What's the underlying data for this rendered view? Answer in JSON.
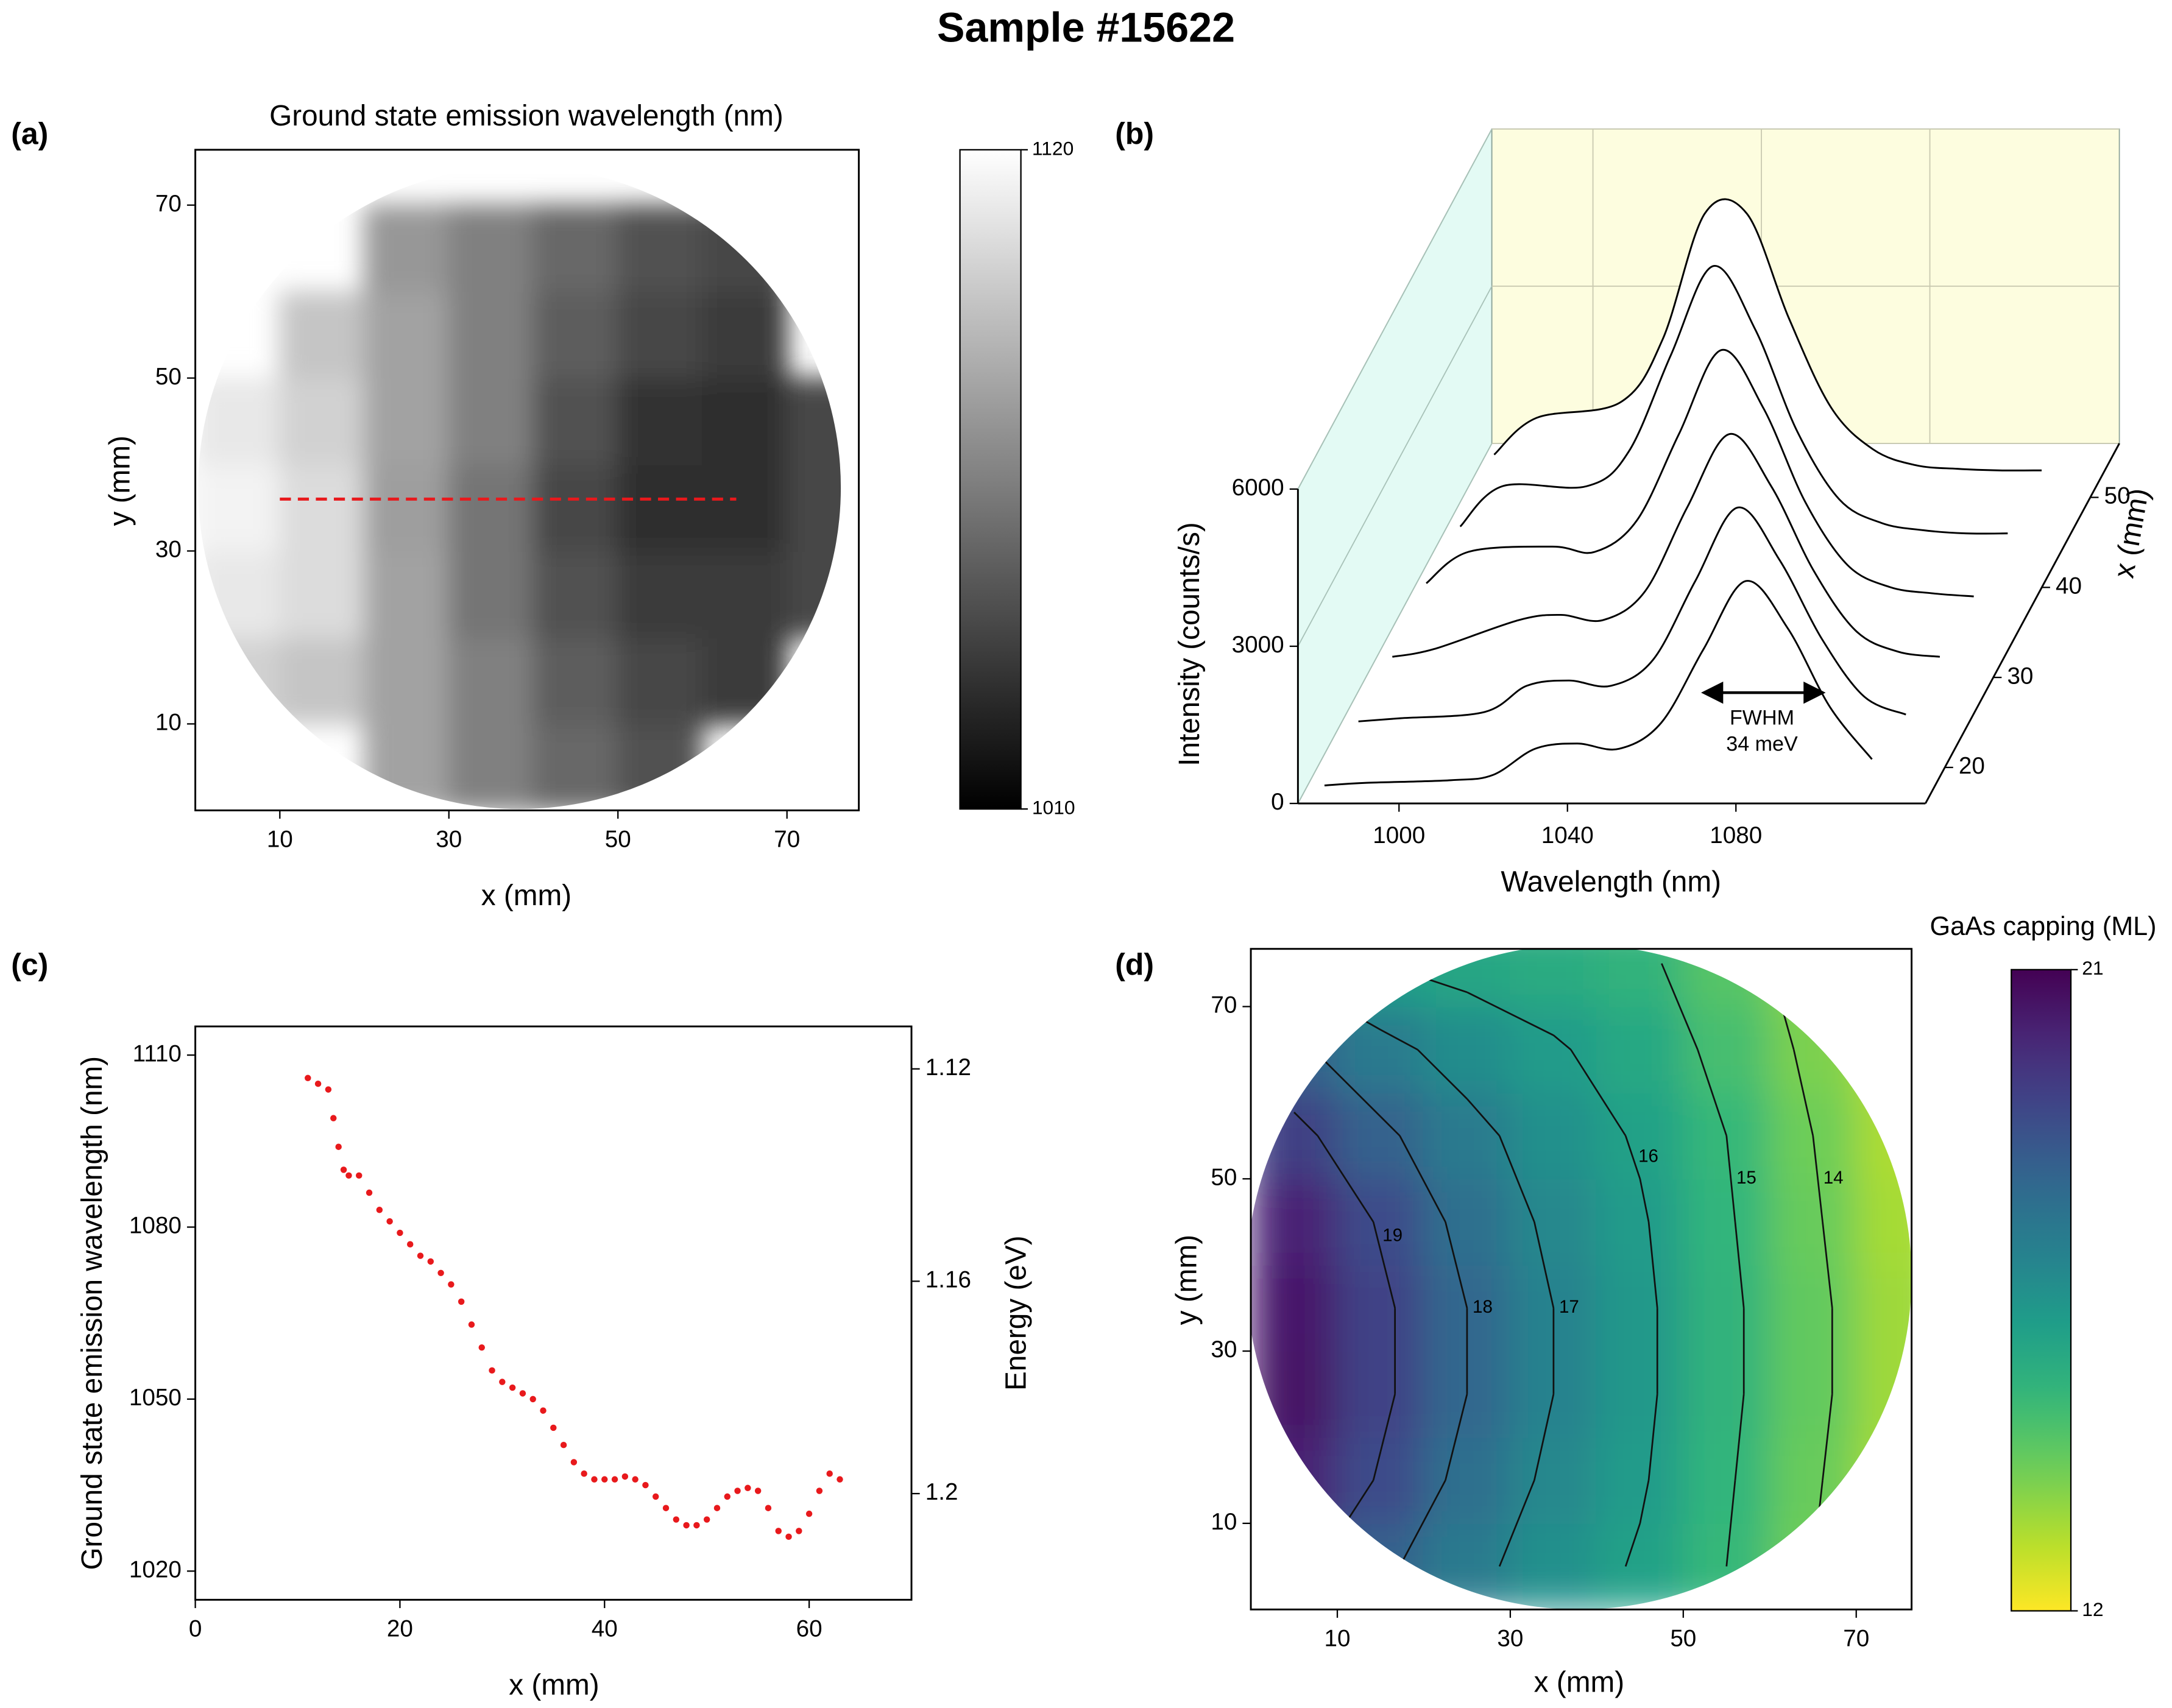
{
  "title": "Sample #15622",
  "chart_data": [
    {
      "type": "contour",
      "panel": "(a)",
      "title": "Ground state emission wavelength (nm)",
      "xlabel": "x (mm)",
      "ylabel": "y (mm)",
      "xlim": [
        0,
        78.5
      ],
      "ylim": [
        0,
        76.4
      ],
      "xticks": [
        10,
        30,
        50,
        70
      ],
      "yticks": [
        10,
        30,
        50,
        70
      ],
      "x": [
        5,
        15,
        25,
        35,
        45,
        55,
        65,
        75
      ],
      "y": [
        5,
        15,
        25,
        35,
        45,
        55,
        65
      ],
      "z": [
        [
          null,
          null,
          1080,
          1065,
          1055,
          1045,
          null,
          null
        ],
        [
          1100,
          1095,
          1080,
          1065,
          1050,
          1040,
          1035,
          null
        ],
        [
          1110,
          1105,
          1080,
          1060,
          1045,
          1035,
          1035,
          1040
        ],
        [
          1115,
          1105,
          1078,
          1060,
          1040,
          1030,
          1030,
          1040
        ],
        [
          1110,
          1100,
          1080,
          1065,
          1045,
          1032,
          1030,
          1040
        ],
        [
          null,
          1095,
          1080,
          1065,
          1050,
          1040,
          1035,
          null
        ],
        [
          null,
          null,
          1075,
          1065,
          1055,
          1045,
          1040,
          null
        ]
      ],
      "colormap": "gray",
      "clim": [
        1010,
        1120
      ],
      "colorbar_ticks": [
        1010,
        1120
      ],
      "line": {
        "x": [
          10,
          64
        ],
        "y": [
          36,
          36
        ],
        "color": "#e8191c"
      }
    },
    {
      "type": "waterfall",
      "panel": "(b)",
      "xlabel": "Wavelength (nm)",
      "ylabel": "Intensity (counts/s)",
      "zlabel": "x (mm)",
      "xlim": [
        976,
        1125
      ],
      "ylim": [
        0,
        6000
      ],
      "zlim": [
        16,
        56
      ],
      "xticks": [
        1000,
        1040,
        1080
      ],
      "yticks": [
        0,
        3000,
        6000
      ],
      "zticks": [
        20,
        30,
        40,
        50
      ],
      "x": [
        980,
        990,
        1010,
        1020,
        1030,
        1040,
        1050,
        1060,
        1070,
        1080,
        1090,
        1100,
        1110
      ],
      "series": [
        {
          "z": 18,
          "values": [
            0,
            50,
            100,
            200,
            700,
            800,
            700,
            1200,
            2600,
            3900,
            3000,
            1500,
            500
          ]
        },
        {
          "z": 25,
          "values": [
            20,
            80,
            200,
            700,
            800,
            700,
            1200,
            2700,
            4100,
            3100,
            1600,
            500,
            150
          ]
        },
        {
          "z": 32,
          "values": [
            50,
            200,
            750,
            850,
            750,
            1300,
            2900,
            4300,
            3300,
            1700,
            550,
            150,
            50
          ]
        },
        {
          "z": 39,
          "values": [
            250,
            850,
            950,
            850,
            1450,
            3100,
            4700,
            3600,
            1800,
            600,
            180,
            60,
            0
          ]
        },
        {
          "z": 46,
          "values": [
            130,
            900,
            900,
            1560,
            3400,
            5100,
            3900,
            1950,
            650,
            200,
            60,
            0,
            0
          ]
        },
        {
          "z": 53,
          "values": [
            300,
            1000,
            1300,
            2500,
            4900,
            4900,
            2900,
            1200,
            400,
            100,
            30,
            0,
            0
          ]
        }
      ],
      "annotation": [
        "FWHM",
        "34 meV"
      ]
    },
    {
      "type": "scatter",
      "panel": "(c)",
      "xlabel": "x (mm)",
      "ylabel": "Ground state emission wavelength (nm)",
      "y2label": "Energy (eV)",
      "xlim": [
        0,
        70
      ],
      "ylim": [
        1015,
        1115
      ],
      "y2lim": [
        1.22,
        1.112
      ],
      "xticks": [
        0,
        20,
        40,
        60
      ],
      "yticks": [
        1020,
        1050,
        1080,
        1110
      ],
      "y2ticks": [
        1.12,
        1.16,
        1.2
      ],
      "color": "#e8191c",
      "x": [
        11,
        12,
        13,
        13.5,
        14,
        14.5,
        15,
        16,
        17,
        18,
        19,
        20,
        21,
        22,
        23,
        24,
        25,
        26,
        27,
        28,
        29,
        30,
        31,
        32,
        33,
        34,
        35,
        36,
        37,
        38,
        39,
        40,
        41,
        42,
        43,
        44,
        45,
        46,
        47,
        48,
        49,
        50,
        51,
        52,
        53,
        54,
        55,
        56,
        57,
        58,
        59,
        60,
        61,
        62,
        63
      ],
      "values": [
        1106,
        1105,
        1104,
        1099,
        1094,
        1090,
        1089,
        1089,
        1086,
        1083,
        1081,
        1079,
        1077,
        1075,
        1074,
        1072,
        1070,
        1067,
        1063,
        1059,
        1055,
        1053,
        1052,
        1051,
        1050,
        1048,
        1045,
        1042,
        1039,
        1037,
        1036,
        1036,
        1036,
        1036.5,
        1036,
        1035,
        1033,
        1031,
        1029,
        1028,
        1028,
        1029,
        1031,
        1033,
        1034,
        1034.5,
        1034,
        1031,
        1027,
        1026,
        1027,
        1030,
        1034,
        1037,
        1036
      ]
    },
    {
      "type": "contour",
      "panel": "(d)",
      "colorbar_label": "GaAs capping (ML)",
      "xlabel": "x (mm)",
      "ylabel": "y (mm)",
      "xlim": [
        0,
        76.4
      ],
      "ylim": [
        0,
        76.7
      ],
      "xticks": [
        10,
        30,
        50,
        70
      ],
      "yticks": [
        10,
        30,
        50,
        70
      ],
      "x": [
        5,
        15,
        25,
        35,
        45,
        55,
        65,
        75
      ],
      "y": [
        5,
        15,
        25,
        35,
        45,
        55,
        65,
        75
      ],
      "z": [
        [
          19.3,
          18.2,
          17.3,
          16.5,
          15.9,
          15.0,
          14.0,
          13.1
        ],
        [
          20.1,
          18.9,
          17.7,
          16.8,
          16.1,
          15.1,
          14.1,
          13.2
        ],
        [
          20.5,
          19.2,
          18.0,
          17.0,
          16.2,
          15.2,
          14.2,
          13.3
        ],
        [
          20.4,
          19.2,
          18.0,
          17.0,
          16.2,
          15.2,
          14.2,
          13.3
        ],
        [
          20.1,
          18.9,
          17.7,
          16.8,
          16.1,
          15.1,
          14.1,
          13.2
        ],
        [
          19.3,
          18.2,
          17.3,
          16.5,
          15.9,
          15.0,
          14.0,
          13.1
        ],
        [
          18.2,
          17.3,
          16.6,
          16.1,
          15.6,
          14.7,
          13.8,
          13.0
        ],
        [
          16.7,
          16.0,
          15.7,
          15.5,
          15.2,
          14.4,
          13.6,
          12.8
        ]
      ],
      "colormap": "viridis_r",
      "clim": [
        12,
        21
      ],
      "colorbar_ticks": [
        12,
        21
      ],
      "levels": [
        13,
        14,
        15,
        16,
        17,
        18,
        19
      ]
    }
  ]
}
